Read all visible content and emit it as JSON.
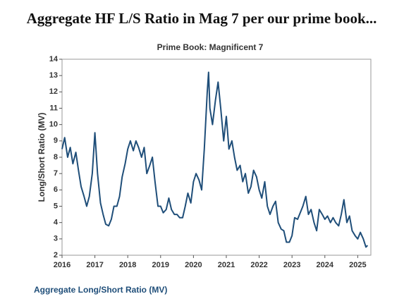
{
  "chart_data": {
    "type": "line",
    "page_title": "Aggregate HF L/S Ratio in Mag 7 per our prime book...",
    "title": "Prime Book: Magnificent 7",
    "ylabel": "Long/Short Ratio (MV)",
    "xlim": [
      2016,
      2025.4
    ],
    "xticks": [
      2016,
      2017,
      2018,
      2019,
      2020,
      2021,
      2022,
      2023,
      2024,
      2025
    ],
    "ylim": [
      2,
      14
    ],
    "yticks": [
      2,
      3,
      4,
      5,
      6,
      7,
      8,
      9,
      10,
      11,
      12,
      13,
      14
    ],
    "x": [
      2016,
      2016.08,
      2016.17,
      2016.25,
      2016.33,
      2016.42,
      2016.5,
      2016.58,
      2016.67,
      2016.75,
      2016.83,
      2016.92,
      2017,
      2017.08,
      2017.17,
      2017.25,
      2017.33,
      2017.42,
      2017.5,
      2017.58,
      2017.67,
      2017.75,
      2017.83,
      2017.92,
      2018,
      2018.08,
      2018.17,
      2018.25,
      2018.33,
      2018.42,
      2018.5,
      2018.58,
      2018.67,
      2018.75,
      2018.83,
      2018.92,
      2019,
      2019.08,
      2019.17,
      2019.25,
      2019.33,
      2019.42,
      2019.5,
      2019.58,
      2019.67,
      2019.75,
      2019.83,
      2019.92,
      2020,
      2020.08,
      2020.17,
      2020.25,
      2020.33,
      2020.42,
      2020.46,
      2020.5,
      2020.58,
      2020.67,
      2020.75,
      2020.83,
      2020.92,
      2021,
      2021.08,
      2021.17,
      2021.25,
      2021.33,
      2021.42,
      2021.5,
      2021.58,
      2021.67,
      2021.75,
      2021.83,
      2021.92,
      2022,
      2022.08,
      2022.17,
      2022.25,
      2022.33,
      2022.42,
      2022.5,
      2022.58,
      2022.67,
      2022.75,
      2022.83,
      2022.92,
      2023,
      2023.08,
      2023.17,
      2023.25,
      2023.33,
      2023.42,
      2023.5,
      2023.58,
      2023.67,
      2023.75,
      2023.83,
      2023.92,
      2024,
      2024.08,
      2024.17,
      2024.25,
      2024.33,
      2024.42,
      2024.5,
      2024.58,
      2024.67,
      2024.75,
      2024.83,
      2024.92,
      2025,
      2025.08,
      2025.17,
      2025.25,
      2025.3
    ],
    "series": [
      {
        "name": "Aggregate Long/Short Ratio (MV)",
        "color": "#1f4e79",
        "values": [
          8.5,
          9.2,
          8.0,
          8.6,
          7.6,
          8.3,
          7.2,
          6.2,
          5.6,
          5.0,
          5.6,
          7.0,
          9.5,
          7.0,
          5.2,
          4.5,
          3.9,
          3.8,
          4.2,
          5.0,
          5.0,
          5.6,
          6.8,
          7.6,
          8.5,
          9.0,
          8.4,
          9.0,
          8.6,
          8.0,
          8.6,
          7.0,
          7.5,
          8.0,
          6.5,
          5.0,
          5.0,
          4.6,
          4.8,
          5.5,
          4.8,
          4.5,
          4.5,
          4.3,
          4.3,
          5.0,
          5.8,
          5.2,
          6.5,
          7.0,
          6.6,
          6.0,
          8.5,
          12.0,
          13.2,
          11.0,
          10.0,
          11.5,
          12.6,
          11.0,
          9.0,
          10.5,
          8.5,
          9.0,
          8.0,
          7.2,
          7.5,
          6.5,
          7.0,
          5.8,
          6.2,
          7.2,
          6.8,
          6.0,
          5.5,
          6.5,
          5.0,
          4.5,
          5.0,
          5.3,
          4.0,
          3.6,
          3.5,
          2.8,
          2.8,
          3.2,
          4.3,
          4.2,
          4.6,
          5.0,
          5.6,
          4.5,
          4.8,
          4.0,
          3.5,
          4.8,
          4.5,
          4.2,
          4.4,
          4.0,
          4.3,
          4.0,
          3.8,
          4.5,
          5.4,
          4.0,
          4.4,
          3.5,
          3.2,
          3.0,
          3.4,
          3.0,
          2.5,
          2.6
        ]
      }
    ]
  }
}
